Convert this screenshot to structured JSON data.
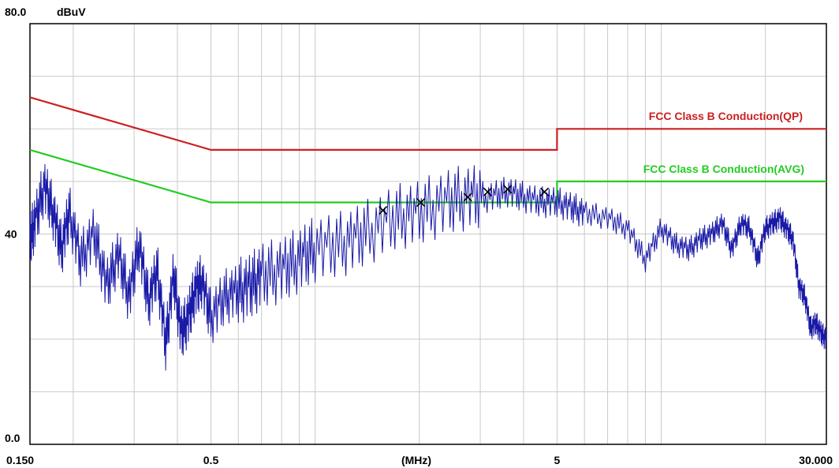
{
  "chart_data": {
    "type": "line",
    "title": "",
    "y_top_label": "80.0",
    "y_unit": "dBuV",
    "x_unit_label": "(MHz)",
    "x_scale": "log",
    "xlim": [
      0.15,
      30
    ],
    "ylim": [
      0,
      80
    ],
    "grid": true,
    "x_tick_labels": [
      {
        "value": 0.15,
        "label": "0.150"
      },
      {
        "value": 0.5,
        "label": "0.5"
      },
      {
        "value": 5,
        "label": "5"
      },
      {
        "value": 30,
        "label": "30.000"
      }
    ],
    "y_tick_labels": [
      {
        "value": 40,
        "label": "40"
      },
      {
        "value": 0,
        "label": "0.0"
      }
    ],
    "series": [
      {
        "name": "FCC Class B Conduction(QP)",
        "color": "#cc2020",
        "x": [
          0.15,
          0.5,
          5,
          5,
          30
        ],
        "y": [
          66,
          56,
          56,
          60,
          60
        ]
      },
      {
        "name": "FCC Class B Conduction(AVG)",
        "color": "#22cc22",
        "x": [
          0.15,
          0.5,
          5,
          5,
          30
        ],
        "y": [
          56,
          46,
          46,
          50,
          50
        ]
      },
      {
        "name": "",
        "color": "#1a1aa8",
        "x": [
          0.15,
          0.155,
          0.165,
          0.175,
          0.185,
          0.195,
          0.21,
          0.23,
          0.25,
          0.27,
          0.29,
          0.31,
          0.33,
          0.35,
          0.37,
          0.39,
          0.41,
          0.43,
          0.45,
          0.47,
          0.5,
          0.55,
          0.6,
          0.65,
          0.7,
          0.8,
          0.9,
          1.0,
          1.2,
          1.4,
          1.7,
          2.0,
          2.4,
          2.8,
          3.2,
          3.6,
          4.0,
          4.5,
          5.0,
          5.5,
          6.0,
          7.0,
          8.0,
          9.0,
          10.0,
          11.0,
          12.0,
          13.0,
          14.0,
          15.0,
          16.0,
          17.0,
          18.0,
          19.0,
          20.0,
          21.0,
          22.0,
          23.0,
          24.0,
          25.0,
          26.0,
          27.0,
          28.0,
          29.0,
          30.0
        ],
        "y": [
          39,
          42,
          49,
          44,
          37,
          44,
          35,
          40,
          30,
          36,
          28,
          38,
          27,
          33,
          19,
          32,
          21,
          24,
          29,
          31,
          24,
          28,
          29,
          30,
          32,
          33,
          35,
          37,
          38,
          40,
          43,
          44,
          46,
          47,
          47,
          48,
          47,
          46,
          46,
          45,
          44,
          43,
          41,
          35,
          41,
          38,
          37,
          39,
          40,
          42,
          37,
          42,
          41,
          35,
          41,
          42,
          43,
          41,
          39,
          30,
          28,
          22,
          23,
          21,
          20
        ]
      }
    ],
    "markers": [
      {
        "x": 1.57,
        "y": 44.5
      },
      {
        "x": 2.02,
        "y": 46.0
      },
      {
        "x": 2.76,
        "y": 47.0
      },
      {
        "x": 3.15,
        "y": 48.0
      },
      {
        "x": 3.6,
        "y": 48.5
      },
      {
        "x": 4.6,
        "y": 48.0
      }
    ]
  }
}
